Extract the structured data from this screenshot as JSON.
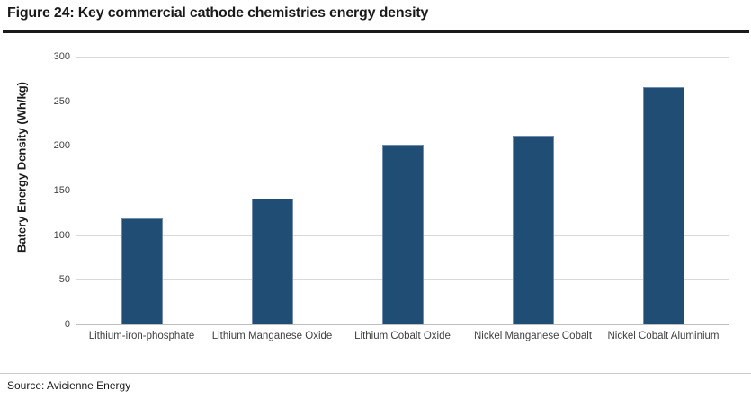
{
  "figure": {
    "title": "Figure 24: Key commercial cathode chemistries energy density",
    "source": "Source: Avicienne Energy"
  },
  "chart_data": {
    "type": "bar",
    "title": "Figure 24: Key commercial cathode chemistries energy density",
    "categories": [
      "Lithium-iron-phosphate",
      "Lithium Manganese Oxide",
      "Lithium Cobalt Oxide",
      "Nickel Manganese Cobalt",
      "Nickel Cobalt Aluminium"
    ],
    "values": [
      118,
      140,
      200,
      210,
      265
    ],
    "xlabel": "",
    "ylabel": "Batery Energy Density (Wh/kg)",
    "ylim": [
      0,
      300
    ],
    "yticks": [
      0,
      50,
      100,
      150,
      200,
      250,
      300
    ],
    "grid": true,
    "legend": false,
    "bar_color": "#1f4d73",
    "bar_border_color": "#708cb0",
    "gridline_color": "#d9d9d9",
    "axis_line_color": "#bfbfbf"
  }
}
